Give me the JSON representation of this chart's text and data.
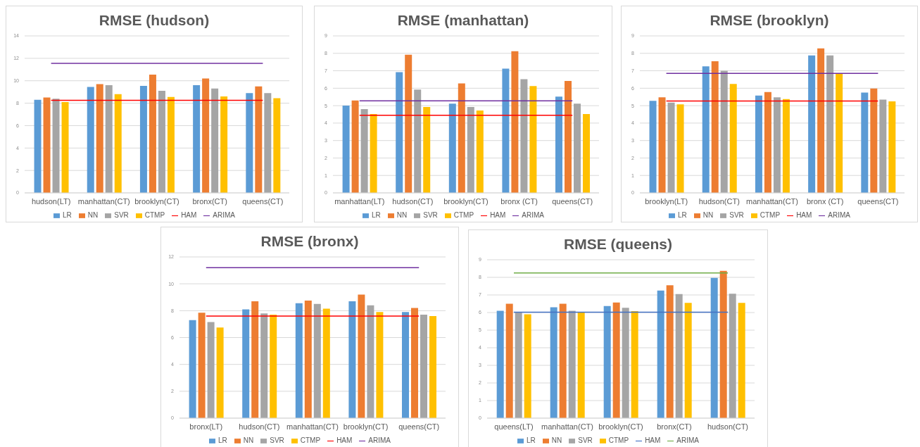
{
  "chart_data": [
    {
      "type": "bar",
      "title": "RMSE (hudson)",
      "categories": [
        "hudson(LT)",
        "manhattan(CT)",
        "brooklyn(CT)",
        "bronx(CT)",
        "queens(CT)"
      ],
      "ylim": [
        0,
        14
      ],
      "yticks": [
        0,
        2,
        4,
        6,
        8,
        10,
        12,
        14
      ],
      "grid": "y",
      "legend": "bottom",
      "marker": "none",
      "series": [
        {
          "name": "LR",
          "color": "#5b9bd5",
          "values": [
            8.3,
            9.45,
            9.55,
            9.6,
            8.9
          ]
        },
        {
          "name": "NN",
          "color": "#ed7d31",
          "values": [
            8.5,
            9.7,
            10.55,
            10.2,
            9.5
          ]
        },
        {
          "name": "SVR",
          "color": "#a5a5a5",
          "values": [
            8.4,
            9.6,
            9.1,
            9.3,
            8.9
          ]
        },
        {
          "name": "CTMP",
          "color": "#ffc000",
          "values": [
            8.1,
            8.8,
            8.55,
            8.6,
            8.45
          ]
        },
        {
          "name": "HAM",
          "type": "line",
          "color": "#ff0000",
          "values": [
            8.25,
            8.25,
            8.25,
            8.25,
            8.25
          ]
        },
        {
          "name": "ARIMA",
          "type": "line",
          "color": "#7030a0",
          "values": [
            11.55,
            11.55,
            11.55,
            11.55,
            11.55
          ]
        }
      ]
    },
    {
      "type": "bar",
      "title": "RMSE (manhattan)",
      "categories": [
        "manhattan(LT)",
        "hudson(CT)",
        "brooklyn(CT)",
        "bronx (CT)",
        "queens(CT)"
      ],
      "ylim": [
        0,
        9
      ],
      "yticks": [
        0,
        1,
        2,
        3,
        4,
        5,
        6,
        7,
        8,
        9
      ],
      "grid": "y",
      "legend": "bottom",
      "marker": "none",
      "series": [
        {
          "name": "LR",
          "color": "#5b9bd5",
          "values": [
            5.0,
            6.92,
            5.12,
            7.12,
            5.52
          ]
        },
        {
          "name": "NN",
          "color": "#ed7d31",
          "values": [
            5.3,
            7.92,
            6.28,
            8.12,
            6.42
          ]
        },
        {
          "name": "SVR",
          "color": "#a5a5a5",
          "values": [
            4.8,
            5.92,
            4.92,
            6.52,
            5.12
          ]
        },
        {
          "name": "CTMP",
          "color": "#ffc000",
          "values": [
            4.52,
            4.92,
            4.72,
            6.12,
            4.52
          ]
        },
        {
          "name": "HAM",
          "type": "line",
          "color": "#ff0000",
          "values": [
            4.45,
            4.45,
            4.45,
            4.45,
            4.45
          ]
        },
        {
          "name": "ARIMA",
          "type": "line",
          "color": "#7030a0",
          "values": [
            5.28,
            5.28,
            5.28,
            5.28,
            5.28
          ]
        }
      ]
    },
    {
      "type": "bar",
      "title": "RMSE (brooklyn)",
      "categories": [
        "brooklyn(LT)",
        "hudson(CT)",
        "manhattan(CT)",
        "bronx (CT)",
        "queens(CT)"
      ],
      "ylim": [
        0,
        9
      ],
      "yticks": [
        0,
        1,
        2,
        3,
        4,
        5,
        6,
        7,
        8,
        9
      ],
      "grid": "y",
      "legend": "bottom",
      "marker": "none",
      "series": [
        {
          "name": "LR",
          "color": "#5b9bd5",
          "values": [
            5.28,
            7.25,
            5.58,
            7.88,
            5.75
          ]
        },
        {
          "name": "NN",
          "color": "#ed7d31",
          "values": [
            5.48,
            7.55,
            5.78,
            8.28,
            5.98
          ]
        },
        {
          "name": "SVR",
          "color": "#a5a5a5",
          "values": [
            5.18,
            7.0,
            5.48,
            7.88,
            5.35
          ]
        },
        {
          "name": "CTMP",
          "color": "#ffc000",
          "values": [
            5.08,
            6.25,
            5.38,
            6.85,
            5.25
          ]
        },
        {
          "name": "HAM",
          "type": "line",
          "color": "#ff0000",
          "values": [
            5.27,
            5.27,
            5.27,
            5.27,
            5.27
          ]
        },
        {
          "name": "ARIMA",
          "type": "line",
          "color": "#7030a0",
          "values": [
            6.85,
            6.85,
            6.85,
            6.85,
            6.85
          ]
        }
      ]
    },
    {
      "type": "bar",
      "title": "RMSE (bronx)",
      "categories": [
        "bronx(LT)",
        "hudson(CT)",
        "manhattan(CT)",
        "brooklyn(CT)",
        "queens(CT)"
      ],
      "ylim": [
        0,
        12
      ],
      "yticks": [
        0,
        2,
        4,
        6,
        8,
        10,
        12
      ],
      "grid": "y",
      "legend": "bottom",
      "marker": "none",
      "series": [
        {
          "name": "LR",
          "color": "#5b9bd5",
          "values": [
            7.3,
            8.1,
            8.55,
            8.7,
            7.9
          ]
        },
        {
          "name": "NN",
          "color": "#ed7d31",
          "values": [
            7.85,
            8.7,
            8.75,
            9.2,
            8.2
          ]
        },
        {
          "name": "SVR",
          "color": "#a5a5a5",
          "values": [
            7.15,
            7.8,
            8.5,
            8.4,
            7.7
          ]
        },
        {
          "name": "CTMP",
          "color": "#ffc000",
          "values": [
            6.75,
            7.7,
            8.15,
            7.9,
            7.6
          ]
        },
        {
          "name": "HAM",
          "type": "line",
          "color": "#ff0000",
          "values": [
            7.6,
            7.6,
            7.6,
            7.6,
            7.6
          ]
        },
        {
          "name": "ARIMA",
          "type": "line",
          "color": "#7030a0",
          "values": [
            11.2,
            11.2,
            11.2,
            11.2,
            11.2
          ]
        }
      ]
    },
    {
      "type": "bar",
      "title": "RMSE (queens)",
      "categories": [
        "queens(LT)",
        "manhattan(CT)",
        "brooklyn(CT)",
        "bronx(CT)",
        "hudson(CT)"
      ],
      "ylim": [
        0,
        9
      ],
      "yticks": [
        0,
        1,
        2,
        3,
        4,
        5,
        6,
        7,
        8,
        9
      ],
      "grid": "y",
      "legend": "bottom",
      "marker": "none",
      "series": [
        {
          "name": "LR",
          "color": "#5b9bd5",
          "values": [
            6.1,
            6.3,
            6.37,
            7.25,
            7.97
          ]
        },
        {
          "name": "NN",
          "color": "#ed7d31",
          "values": [
            6.5,
            6.5,
            6.57,
            7.55,
            8.37
          ]
        },
        {
          "name": "SVR",
          "color": "#a5a5a5",
          "values": [
            6.03,
            6.1,
            6.27,
            7.05,
            7.07
          ]
        },
        {
          "name": "CTMP",
          "color": "#ffc000",
          "values": [
            5.9,
            6.0,
            6.08,
            6.55,
            6.55
          ]
        },
        {
          "name": "HAM",
          "type": "line",
          "color": "#4472c4",
          "values": [
            6.02,
            6.02,
            6.02,
            6.02,
            6.02
          ]
        },
        {
          "name": "ARIMA",
          "type": "line",
          "color": "#70ad47",
          "values": [
            8.25,
            8.25,
            8.25,
            8.25,
            8.25
          ]
        }
      ]
    }
  ]
}
